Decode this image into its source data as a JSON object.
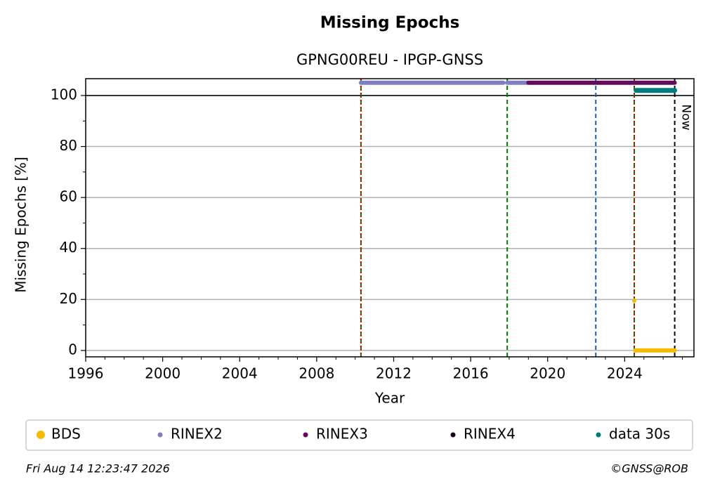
{
  "chart_data": {
    "type": "line",
    "title": "Missing Epochs",
    "subtitle": "GPNG00REU - IPGP-GNSS",
    "x_label": "Year",
    "y_label": "Missing Epochs [%]",
    "xlim": [
      1996,
      2027.6
    ],
    "ylim": [
      -2.5,
      106.6
    ],
    "xticks": [
      1996,
      2000,
      2004,
      2008,
      2012,
      2016,
      2020,
      2024
    ],
    "xminorticks": [
      1997,
      1998,
      1999,
      2001,
      2002,
      2003,
      2005,
      2006,
      2007,
      2009,
      2010,
      2011,
      2013,
      2014,
      2015,
      2017,
      2018,
      2019,
      2021,
      2022,
      2023,
      2025,
      2026,
      2027
    ],
    "yticks": [
      0,
      20,
      40,
      60,
      80,
      100
    ],
    "yminorticks": [
      10,
      30,
      50,
      70,
      90
    ],
    "grid": true,
    "ref_line": 100,
    "vlines": [
      {
        "x": 2010.3,
        "color": "#007a00",
        "style": "dashed"
      },
      {
        "x": 2010.3,
        "color": "#d00000",
        "style": "dotted"
      },
      {
        "x": 2017.9,
        "color": "#007a00",
        "style": "dashed"
      },
      {
        "x": 2022.5,
        "color": "#1f5fa8",
        "style": "dashed"
      },
      {
        "x": 2024.5,
        "color": "#007a00",
        "style": "dashed"
      },
      {
        "x": 2024.5,
        "color": "#d00000",
        "style": "dotted"
      },
      {
        "x": 2026.6,
        "color": "#000000",
        "style": "dashed",
        "label": "Now"
      }
    ],
    "series": [
      {
        "name": "BDS",
        "color": "#f5bb00",
        "x": [
          2024.5,
          2024.52,
          2024.55,
          2026.6
        ],
        "values": [
          19.5,
          null,
          0,
          0
        ]
      },
      {
        "name": "RINEX2",
        "color": "#7f7fbf",
        "x": [
          2010.3,
          2017.7,
          2017.8,
          2017.9,
          2019.0
        ],
        "values": [
          105,
          105,
          null,
          105,
          105
        ]
      },
      {
        "name": "RINEX3",
        "color": "#640a5e",
        "x": [
          2019.0,
          2026.6
        ],
        "values": [
          105,
          105
        ]
      },
      {
        "name": "RINEX4",
        "color": "#1a0020",
        "x": [],
        "values": []
      },
      {
        "name": "data 30s",
        "color": "#007b7b",
        "x": [
          2024.6,
          2026.6
        ],
        "values": [
          102,
          102
        ]
      }
    ],
    "footer_left": "Fri Aug 14 12:23:47 2026",
    "footer_right": "©GNSS@ROB"
  }
}
